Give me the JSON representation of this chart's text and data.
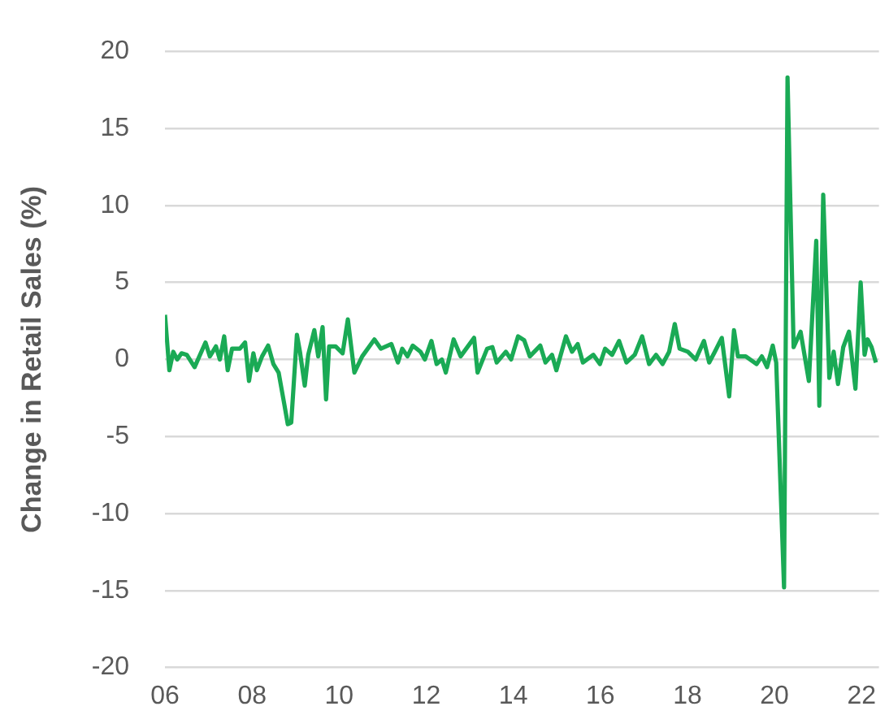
{
  "chart_data": {
    "type": "line",
    "ylabel": "Change in Retail Sales (%)",
    "xlim": [
      2006,
      2022.4
    ],
    "xticks": [
      {
        "value": 2006,
        "label": "06"
      },
      {
        "value": 2008,
        "label": "08"
      },
      {
        "value": 2010,
        "label": "10"
      },
      {
        "value": 2012,
        "label": "12"
      },
      {
        "value": 2014,
        "label": "14"
      },
      {
        "value": 2016,
        "label": "16"
      },
      {
        "value": 2018,
        "label": "18"
      },
      {
        "value": 2020,
        "label": "20"
      },
      {
        "value": 2022,
        "label": "22"
      }
    ],
    "ylim": [
      -20,
      20
    ],
    "yticks": [
      -20,
      -15,
      -10,
      -5,
      0,
      5,
      10,
      15,
      20
    ],
    "grid": "y",
    "legend": false,
    "marker": "none",
    "line_style": "solid",
    "series": [
      {
        "color": "#1aaa55",
        "x": [
          2006.0,
          2006.1,
          2006.19,
          2006.28,
          2006.38,
          2006.5,
          2006.68,
          2006.93,
          2007.03,
          2007.17,
          2007.26,
          2007.36,
          2007.44,
          2007.54,
          2007.72,
          2007.84,
          2007.93,
          2008.03,
          2008.11,
          2008.23,
          2008.37,
          2008.49,
          2008.61,
          2008.74,
          2008.82,
          2008.9,
          2009.03,
          2009.1,
          2009.21,
          2009.29,
          2009.43,
          2009.52,
          2009.62,
          2009.7,
          2009.77,
          2009.92,
          2010.08,
          2010.2,
          2010.35,
          2010.53,
          2010.81,
          2010.96,
          2011.2,
          2011.35,
          2011.45,
          2011.57,
          2011.69,
          2011.87,
          2011.97,
          2012.12,
          2012.24,
          2012.36,
          2012.45,
          2012.63,
          2012.79,
          2013.1,
          2013.18,
          2013.4,
          2013.52,
          2013.62,
          2013.83,
          2013.95,
          2014.11,
          2014.25,
          2014.38,
          2014.62,
          2014.74,
          2014.89,
          2014.99,
          2015.21,
          2015.35,
          2015.48,
          2015.6,
          2015.84,
          2015.99,
          2016.11,
          2016.27,
          2016.43,
          2016.6,
          2016.79,
          2016.96,
          2017.12,
          2017.28,
          2017.43,
          2017.58,
          2017.71,
          2017.82,
          2018.01,
          2018.19,
          2018.38,
          2018.5,
          2018.63,
          2018.79,
          2018.96,
          2019.07,
          2019.16,
          2019.34,
          2019.59,
          2019.71,
          2019.83,
          2019.96,
          2020.04,
          2020.22,
          2020.3,
          2020.44,
          2020.6,
          2020.79,
          2020.96,
          2021.03,
          2021.12,
          2021.26,
          2021.36,
          2021.46,
          2021.58,
          2021.71,
          2021.86,
          2021.98,
          2022.07,
          2022.14,
          2022.23,
          2022.33
        ],
        "values": [
          2.9,
          -0.7,
          0.5,
          0,
          0.4,
          0.3,
          -0.5,
          1.1,
          0.2,
          0.85,
          0,
          1.5,
          -0.7,
          0.7,
          0.7,
          1.1,
          -1.4,
          0.4,
          -0.7,
          0.2,
          0.9,
          -0.3,
          -0.85,
          -2.9,
          -4.2,
          -4.1,
          1.6,
          0.5,
          -1.7,
          0.3,
          1.9,
          0.2,
          2.1,
          -2.6,
          0.85,
          0.85,
          0.4,
          2.6,
          -0.85,
          0.2,
          1.3,
          0.7,
          1.0,
          -0.2,
          0.7,
          0.2,
          0.9,
          0.5,
          0,
          1.2,
          -0.3,
          0,
          -0.85,
          1.3,
          0.2,
          1.4,
          -0.85,
          0.7,
          0.8,
          -0.2,
          0.5,
          0,
          1.5,
          1.25,
          0.2,
          0.9,
          -0.2,
          0.3,
          -0.7,
          1.5,
          0.5,
          1.0,
          -0.2,
          0.3,
          -0.3,
          0.7,
          0.3,
          1.2,
          -0.2,
          0.3,
          1.5,
          -0.3,
          0.3,
          -0.3,
          0.5,
          2.3,
          0.7,
          0.5,
          0,
          1.2,
          -0.2,
          0.5,
          1.4,
          -2.4,
          1.9,
          0.2,
          0.2,
          -0.3,
          0.2,
          -0.5,
          0.9,
          -0.2,
          -14.8,
          18.3,
          0.8,
          1.8,
          -1.4,
          7.7,
          -3.0,
          10.7,
          -1.2,
          0.5,
          -1.6,
          0.8,
          1.8,
          -1.9,
          5.0,
          0.3,
          1.3,
          0.8,
          -0.2
        ]
      }
    ]
  }
}
